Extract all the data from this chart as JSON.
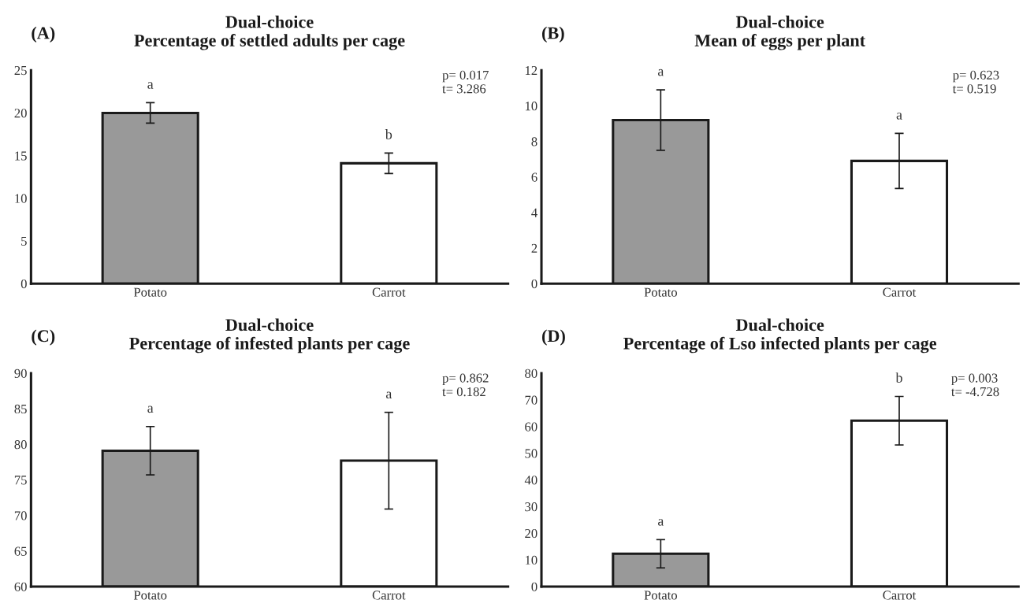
{
  "chart_data": [
    {
      "type": "bar",
      "title": "Dual-choice\nPercentage of settled adults per cage",
      "categories": [
        "Potato",
        "Carrot"
      ],
      "values": [
        20.0,
        14.1
      ],
      "errors": [
        1.2,
        1.2
      ],
      "colors": [
        "#999999",
        "#ffffff"
      ],
      "ylim": [
        0,
        25
      ],
      "yticks": [
        0,
        5,
        10,
        15,
        20,
        25
      ],
      "grid": false,
      "annotations": [
        "(A)",
        "p= 0.017\nt= 3.286",
        "a",
        "b"
      ]
    },
    {
      "type": "bar",
      "title": "Dual-choice\nMean of eggs per plant",
      "categories": [
        "Potato",
        "Carrot"
      ],
      "values": [
        9.2,
        6.9
      ],
      "errors": [
        1.7,
        1.55
      ],
      "colors": [
        "#999999",
        "#ffffff"
      ],
      "ylim": [
        0,
        12
      ],
      "yticks": [
        0,
        2,
        4,
        6,
        8,
        10,
        12
      ],
      "grid": false,
      "annotations": [
        "(B)",
        "p= 0.623\nt= 0.519",
        "a",
        "a"
      ]
    },
    {
      "type": "bar",
      "title": "Dual-choice\nPercentage of infested plants per cage",
      "categories": [
        "Potato",
        "Carrot"
      ],
      "values": [
        79.1,
        77.7
      ],
      "errors": [
        3.4,
        6.8
      ],
      "colors": [
        "#999999",
        "#ffffff"
      ],
      "ylim": [
        60,
        90
      ],
      "yticks": [
        60,
        65,
        70,
        75,
        80,
        85,
        90
      ],
      "grid": false,
      "annotations": [
        "(C)",
        "p= 0.862\nt= 0.182",
        "a",
        "a"
      ]
    },
    {
      "type": "bar",
      "title": "Dual-choice\nPercentage of Lso infected plants per cage",
      "categories": [
        "Potato",
        "Carrot"
      ],
      "values": [
        12.3,
        62.2
      ],
      "errors": [
        5.3,
        9.1
      ],
      "colors": [
        "#999999",
        "#ffffff"
      ],
      "ylim": [
        0,
        80
      ],
      "yticks": [
        0,
        10,
        20,
        30,
        40,
        50,
        60,
        70,
        80
      ],
      "grid": false,
      "annotations": [
        "(D)",
        "p= 0.003\nt= -4.728",
        "a",
        "b"
      ]
    }
  ]
}
